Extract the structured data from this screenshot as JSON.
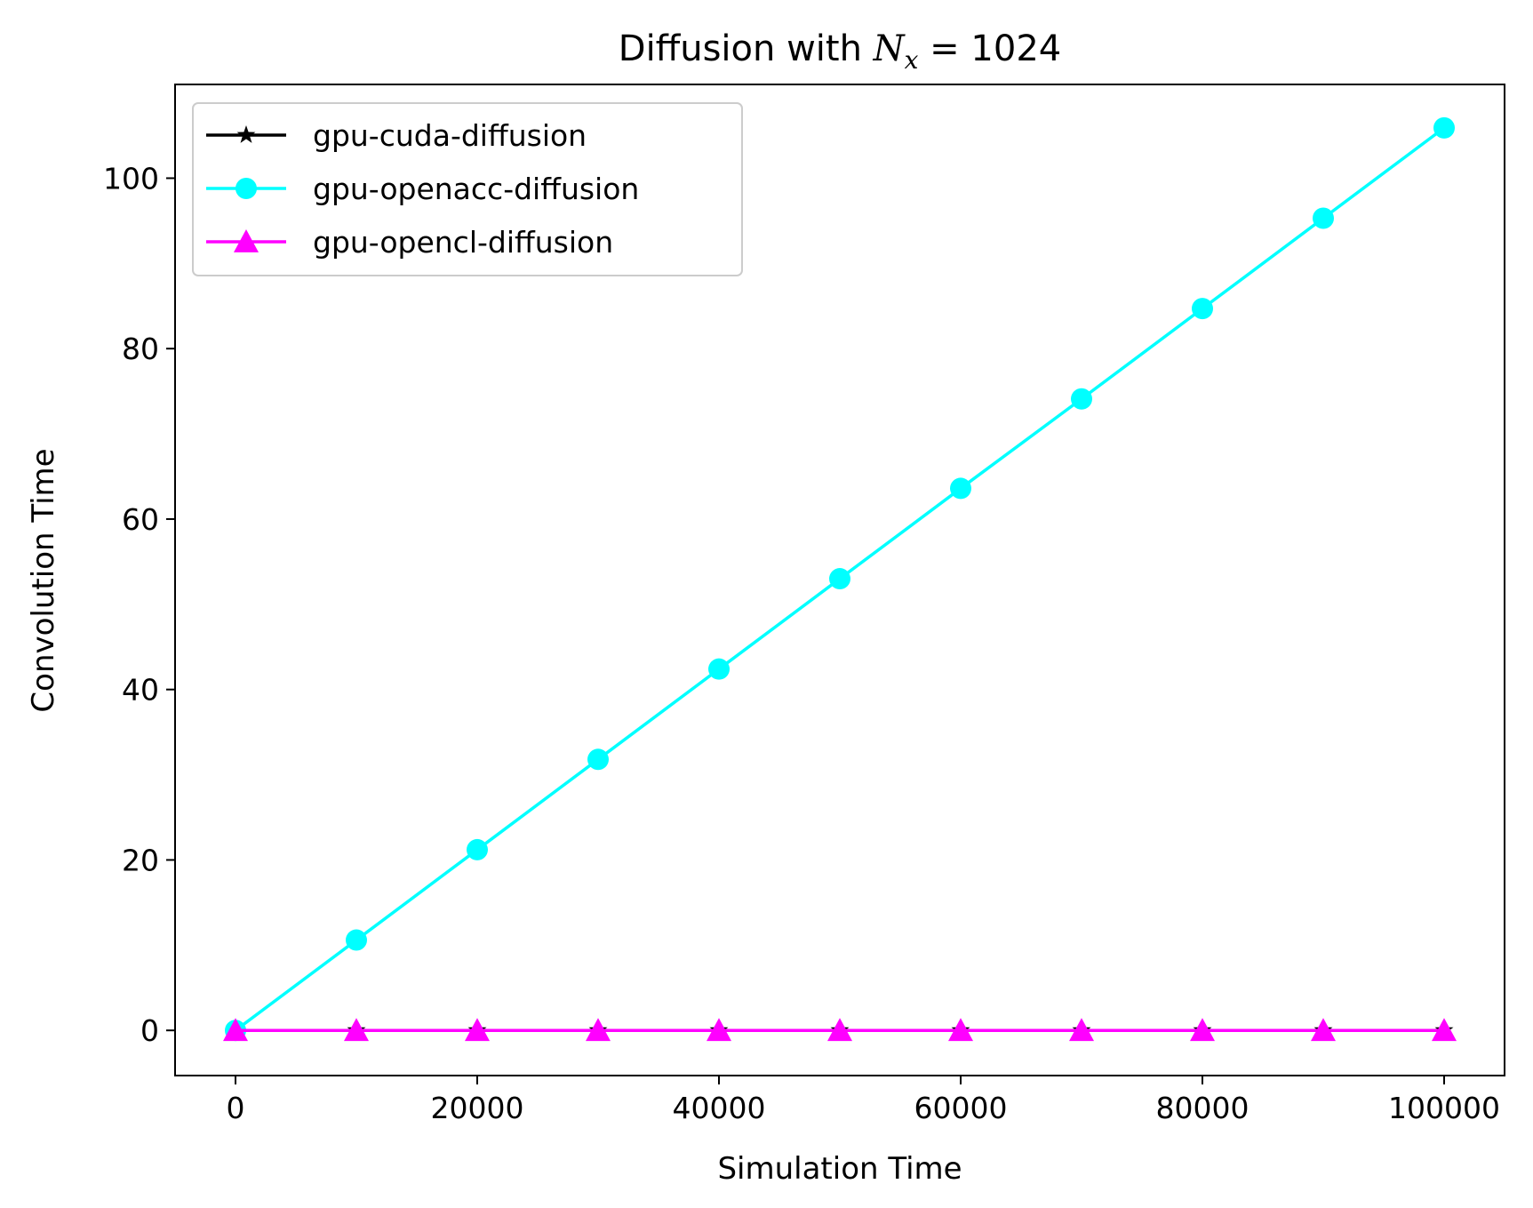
{
  "chart_data": {
    "type": "line",
    "title": {
      "prefix": "Diffusion with ",
      "symbol": "N",
      "subscript": "x",
      "suffix": " = 1024"
    },
    "xlabel": "Simulation Time",
    "ylabel": "Convolution Time",
    "xlim": [
      -5000,
      105000
    ],
    "ylim": [
      -5.3,
      111.0
    ],
    "xticks": [
      0,
      20000,
      40000,
      60000,
      80000,
      100000
    ],
    "yticks": [
      0,
      20,
      40,
      60,
      80,
      100
    ],
    "grid": false,
    "legend_position": "upper-left",
    "x": [
      0,
      10000,
      20000,
      30000,
      40000,
      50000,
      60000,
      70000,
      80000,
      90000,
      100000
    ],
    "series": [
      {
        "name": "gpu-cuda-diffusion",
        "color": "#000000",
        "marker": "star",
        "values": [
          0,
          0,
          0,
          0,
          0,
          0,
          0,
          0,
          0,
          0,
          0
        ]
      },
      {
        "name": "gpu-openacc-diffusion",
        "color": "#00ffff",
        "marker": "circle",
        "values": [
          0,
          10.6,
          21.2,
          31.8,
          42.4,
          53.0,
          63.6,
          74.1,
          84.7,
          95.3,
          105.9
        ]
      },
      {
        "name": "gpu-opencl-diffusion",
        "color": "#ff00ff",
        "marker": "triangle",
        "values": [
          0,
          0,
          0,
          0,
          0,
          0,
          0,
          0,
          0,
          0,
          0
        ]
      }
    ]
  }
}
